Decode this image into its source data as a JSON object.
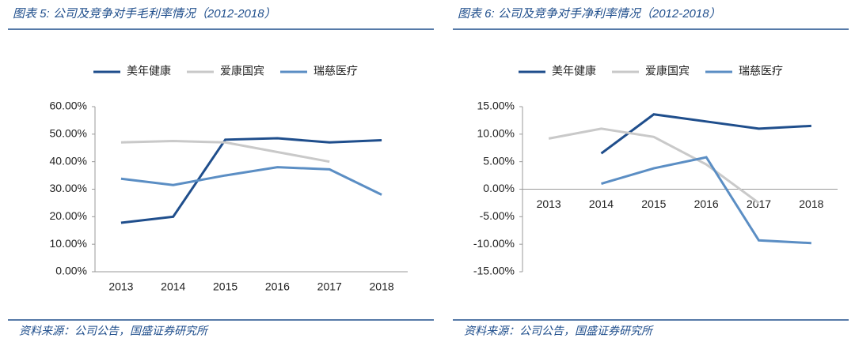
{
  "chart_data": [
    {
      "type": "line",
      "title": "图表 5:  公司及竞争对手毛利率情况（2012-2018）",
      "source": "资料来源：公司公告，国盛证券研究所",
      "categories": [
        "2013",
        "2014",
        "2015",
        "2016",
        "2017",
        "2018"
      ],
      "series": [
        {
          "name": "美年健康",
          "color": "#1f4e8c",
          "values": [
            17.8,
            20,
            48,
            48.5,
            47,
            47.8
          ]
        },
        {
          "name": "爱康国宾",
          "color": "#c9c9c9",
          "values": [
            47,
            47.5,
            47,
            43.5,
            40,
            null
          ]
        },
        {
          "name": "瑞慈医疗",
          "color": "#5b8ec4",
          "values": [
            33.8,
            31.5,
            35,
            38,
            37.2,
            28
          ]
        }
      ],
      "ylim": [
        0,
        60
      ],
      "yticks": [
        {
          "value": 0,
          "label": "0.00%"
        },
        {
          "value": 10,
          "label": "10.00%"
        },
        {
          "value": 20,
          "label": "20.00%"
        },
        {
          "value": 30,
          "label": "30.00%"
        },
        {
          "value": 40,
          "label": "40.00%"
        },
        {
          "value": 50,
          "label": "50.00%"
        },
        {
          "value": 60,
          "label": "60.00%"
        }
      ],
      "grid": false,
      "legend": "top"
    },
    {
      "type": "line",
      "title": "图表 6:  公司及竞争对手净利率情况（2012-2018）",
      "source": "资料来源：公司公告，国盛证券研究所",
      "categories": [
        "2013",
        "2014",
        "2015",
        "2016",
        "2017",
        "2018"
      ],
      "series": [
        {
          "name": "美年健康",
          "color": "#1f4e8c",
          "values": [
            null,
            6.5,
            13.6,
            12.3,
            11,
            11.5
          ]
        },
        {
          "name": "爱康国宾",
          "color": "#c9c9c9",
          "values": [
            9.2,
            11,
            9.5,
            4.5,
            -2.5,
            null
          ]
        },
        {
          "name": "瑞慈医疗",
          "color": "#5b8ec4",
          "values": [
            null,
            1,
            3.8,
            5.8,
            -9.3,
            -9.8
          ]
        }
      ],
      "ylim": [
        -15,
        15
      ],
      "yticks": [
        {
          "value": -15,
          "label": "-15.00%"
        },
        {
          "value": -10,
          "label": "-10.00%"
        },
        {
          "value": -5,
          "label": "-5.00%"
        },
        {
          "value": 0,
          "label": "0.00%"
        },
        {
          "value": 5,
          "label": "5.00%"
        },
        {
          "value": 10,
          "label": "10.00%"
        },
        {
          "value": 15,
          "label": "15.00%"
        }
      ],
      "grid": false,
      "legend": "top"
    }
  ]
}
